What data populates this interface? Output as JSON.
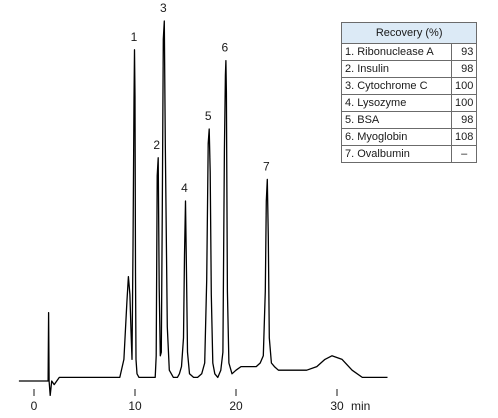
{
  "chart_data": {
    "type": "line",
    "title": "",
    "xlabel": "",
    "x_unit": "min",
    "ylabel": "",
    "xlim": [
      -1.5,
      35
    ],
    "ylim": [
      0,
      100
    ],
    "x_ticks": [
      0,
      10,
      20,
      30
    ],
    "grid": false,
    "legend": "none",
    "trace_color": "#000000",
    "series": [
      {
        "x": [
          -1.5,
          1.4,
          1.45,
          1.5,
          1.6,
          1.75,
          2.0,
          2.5,
          3.5,
          5.0,
          7.0,
          8.5,
          8.9,
          9.2,
          9.35,
          9.5,
          9.6,
          9.7,
          9.8,
          9.9,
          9.95,
          10.0,
          10.05,
          10.1,
          10.2,
          10.4,
          10.8,
          11.2,
          11.7,
          12.0,
          12.1,
          12.2,
          12.3,
          12.4,
          12.5,
          12.6,
          12.7,
          12.8,
          12.9,
          13.0,
          13.2,
          13.4,
          13.8,
          14.2,
          14.4,
          14.6,
          14.8,
          14.9,
          15.0,
          15.1,
          15.2,
          15.4,
          15.8,
          16.2,
          16.6,
          16.9,
          17.1,
          17.25,
          17.35,
          17.45,
          17.55,
          17.7,
          17.9,
          18.2,
          18.5,
          18.7,
          18.85,
          18.95,
          19.0,
          19.05,
          19.15,
          19.3,
          19.6,
          20.0,
          20.5,
          21.0,
          21.5,
          22.0,
          22.4,
          22.7,
          22.9,
          23.0,
          23.1,
          23.2,
          23.3,
          23.5,
          23.8,
          24.2,
          25.0,
          26.0,
          27.0,
          28.0,
          28.8,
          29.5,
          30.5,
          31.5,
          32.5,
          35.0
        ],
        "y": [
          0,
          0,
          19,
          0,
          -4,
          0,
          -1,
          1,
          1,
          1,
          1,
          1,
          6,
          22,
          29,
          24,
          14,
          6,
          37,
          78,
          92,
          79,
          30,
          6,
          2,
          1,
          1,
          1,
          1,
          1,
          7,
          57,
          62,
          26,
          7,
          8,
          48,
          95,
          100,
          66,
          15,
          3,
          1,
          1,
          2,
          4,
          12,
          35,
          50,
          30,
          8,
          2,
          1,
          1,
          2,
          5,
          28,
          66,
          70,
          58,
          24,
          5,
          2,
          1,
          3,
          8,
          64,
          85,
          89,
          80,
          25,
          5,
          2,
          3,
          4,
          4,
          4,
          4,
          5,
          7,
          25,
          50,
          56,
          40,
          12,
          5,
          4,
          3,
          3,
          3,
          3,
          4,
          6,
          7,
          6,
          3,
          1,
          1
        ]
      }
    ],
    "peak_labels": [
      {
        "label": "1",
        "x": 10.0,
        "y": 92
      },
      {
        "label": "2",
        "x": 12.25,
        "y": 62
      },
      {
        "label": "3",
        "x": 12.9,
        "y": 100
      },
      {
        "label": "4",
        "x": 15.0,
        "y": 50
      },
      {
        "label": "5",
        "x": 17.35,
        "y": 70
      },
      {
        "label": "6",
        "x": 19.0,
        "y": 89
      },
      {
        "label": "7",
        "x": 23.1,
        "y": 56
      }
    ]
  },
  "recovery_table": {
    "header": "Recovery (%)",
    "rows": [
      {
        "name": "1. Ribonuclease A",
        "value": "93"
      },
      {
        "name": "2. Insulin",
        "value": "98"
      },
      {
        "name": "3. Cytochrome C",
        "value": "100"
      },
      {
        "name": "4. Lysozyme",
        "value": "100"
      },
      {
        "name": "5. BSA",
        "value": "98"
      },
      {
        "name": "6. Myoglobin",
        "value": "108"
      },
      {
        "name": "7. Ovalbumin",
        "value": "–"
      }
    ]
  }
}
